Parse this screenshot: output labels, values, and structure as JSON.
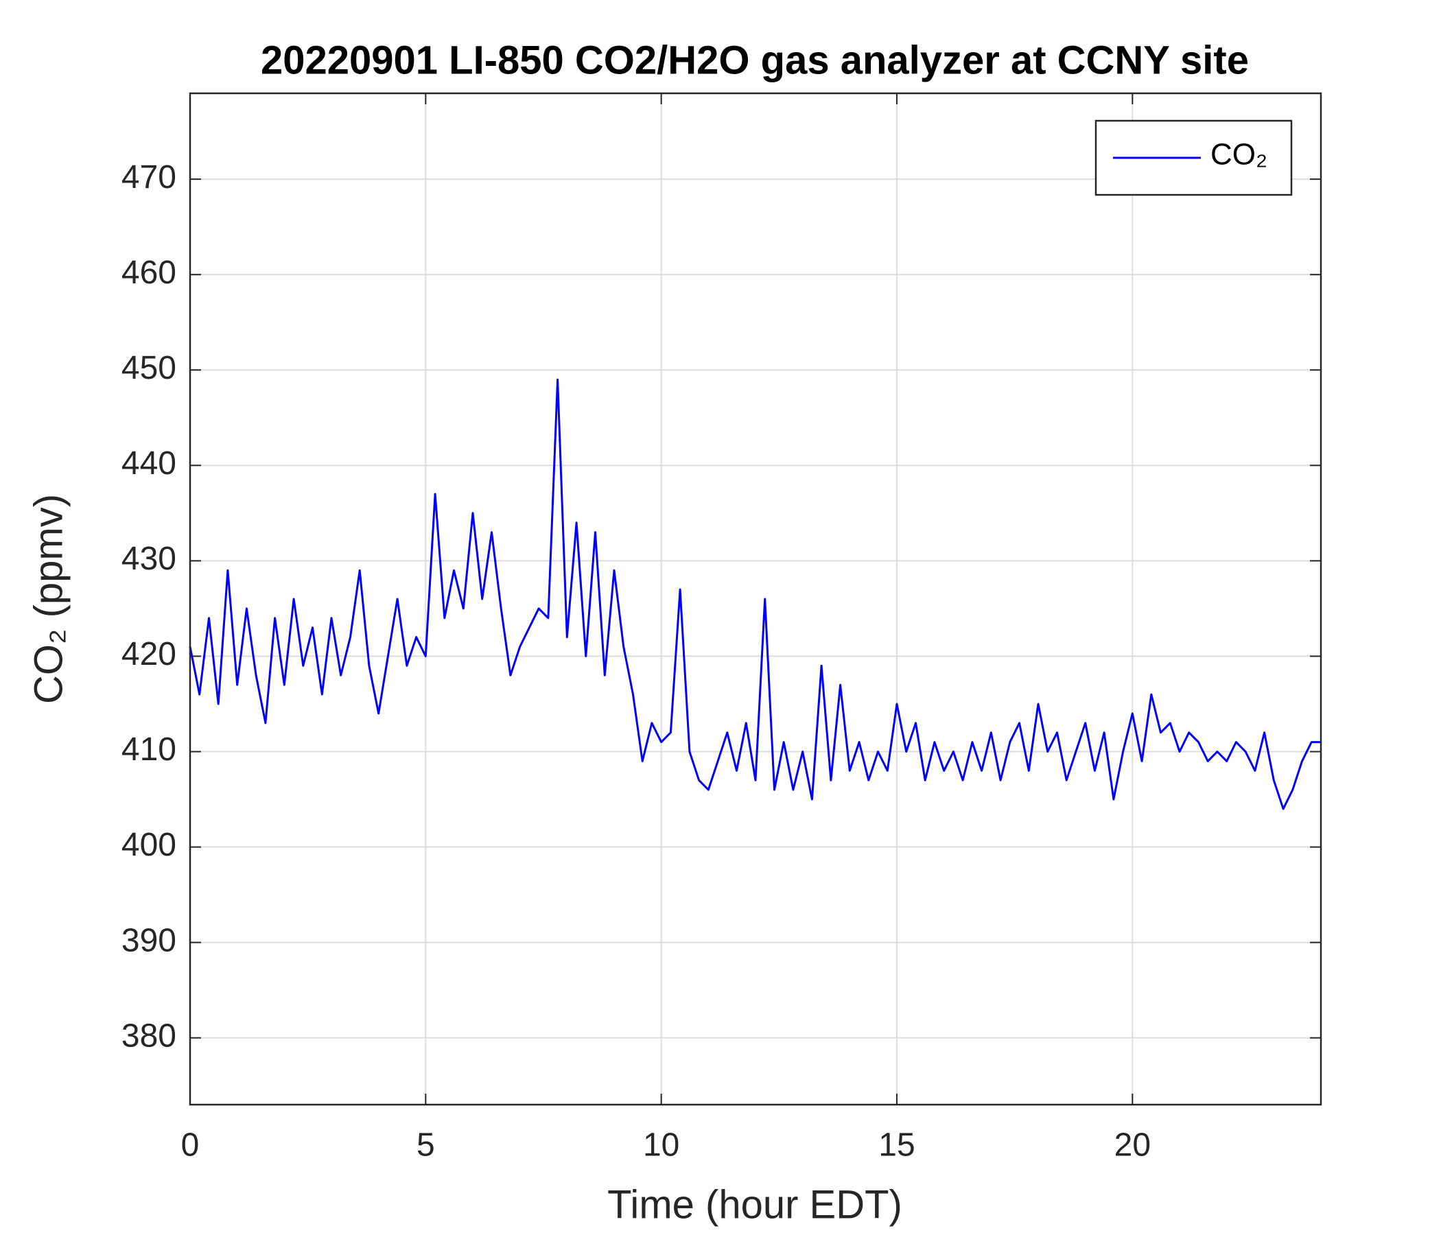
{
  "chart_data": {
    "type": "line",
    "title": "20220901 LI-850 CO2/H2O gas analyzer at CCNY site",
    "xlabel": "Time (hour EDT)",
    "ylabel": "CO₂ (ppmv)",
    "x": [
      0,
      0.2,
      0.4,
      0.6,
      0.8,
      1,
      1.2,
      1.4,
      1.6,
      1.8,
      2,
      2.2,
      2.4,
      2.6,
      2.8,
      3,
      3.2,
      3.4,
      3.6,
      3.8,
      4,
      4.2,
      4.4,
      4.6,
      4.8,
      5,
      5.2,
      5.4,
      5.6,
      5.8,
      6,
      6.2,
      6.4,
      6.6,
      6.8,
      7,
      7.2,
      7.4,
      7.6,
      7.8,
      8,
      8.2,
      8.4,
      8.6,
      8.8,
      9,
      9.2,
      9.4,
      9.6,
      9.8,
      10,
      10.2,
      10.4,
      10.6,
      10.8,
      11,
      11.2,
      11.4,
      11.6,
      11.8,
      12,
      12.2,
      12.4,
      12.6,
      12.8,
      13,
      13.2,
      13.4,
      13.6,
      13.8,
      14,
      14.2,
      14.4,
      14.6,
      14.8,
      15,
      15.2,
      15.4,
      15.6,
      15.8,
      16,
      16.2,
      16.4,
      16.6,
      16.8,
      17,
      17.2,
      17.4,
      17.6,
      17.8,
      18,
      18.2,
      18.4,
      18.6,
      18.8,
      19,
      19.2,
      19.4,
      19.6,
      19.8,
      20,
      20.2,
      20.4,
      20.6,
      20.8,
      21,
      21.2,
      21.4,
      21.6,
      21.8,
      22,
      22.2,
      22.4,
      22.6,
      22.8,
      23,
      23.2,
      23.4,
      23.6,
      23.8,
      24
    ],
    "series": [
      {
        "name": "CO₂",
        "color": "#0000ff",
        "values": [
          421,
          416,
          424,
          415,
          429,
          417,
          425,
          418,
          413,
          424,
          417,
          426,
          419,
          423,
          416,
          424,
          418,
          422,
          429,
          419,
          414,
          420,
          426,
          419,
          422,
          420,
          437,
          424,
          429,
          425,
          435,
          426,
          433,
          425,
          418,
          421,
          423,
          425,
          424,
          449,
          422,
          434,
          420,
          433,
          418,
          429,
          421,
          416,
          409,
          413,
          411,
          412,
          427,
          410,
          407,
          406,
          409,
          412,
          408,
          413,
          407,
          426,
          406,
          411,
          406,
          410,
          405,
          419,
          407,
          417,
          408,
          411,
          407,
          410,
          408,
          415,
          410,
          413,
          407,
          411,
          408,
          410,
          407,
          411,
          408,
          412,
          407,
          411,
          413,
          408,
          415,
          410,
          412,
          407,
          410,
          413,
          408,
          412,
          405,
          410,
          414,
          409,
          416,
          412,
          413,
          410,
          412,
          411,
          409,
          410,
          409,
          411,
          410,
          408,
          412,
          407,
          404,
          406,
          409,
          411,
          411
        ]
      }
    ],
    "xlim": [
      0,
      24
    ],
    "xticks": [
      0,
      5,
      10,
      15,
      20
    ],
    "ylim": [
      373,
      479
    ],
    "yticks": [
      380,
      390,
      400,
      410,
      420,
      430,
      440,
      450,
      460,
      470
    ],
    "grid": true,
    "legend": "upper right"
  }
}
